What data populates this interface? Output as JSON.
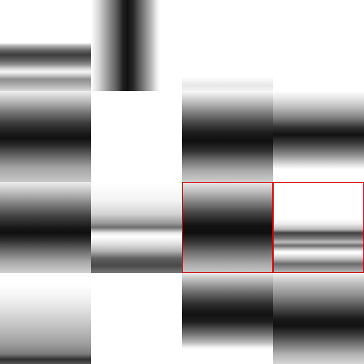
{
  "grid": {
    "rows": 4,
    "columns": 4,
    "tiles": [
      {
        "row": 1,
        "col": 1,
        "pattern": "horizontal-bands-lower",
        "selected": false
      },
      {
        "row": 1,
        "col": 2,
        "pattern": "vertical-dark-band",
        "selected": false
      },
      {
        "row": 1,
        "col": 3,
        "pattern": "faint-lower-band",
        "selected": false
      },
      {
        "row": 1,
        "col": 4,
        "pattern": "blank",
        "selected": false
      },
      {
        "row": 2,
        "col": 1,
        "pattern": "horizontal-dark-band",
        "selected": false
      },
      {
        "row": 2,
        "col": 2,
        "pattern": "blank",
        "selected": false
      },
      {
        "row": 2,
        "col": 3,
        "pattern": "horizontal-dark-band",
        "selected": false
      },
      {
        "row": 2,
        "col": 4,
        "pattern": "horizontal-dark-band-short",
        "selected": false
      },
      {
        "row": 3,
        "col": 1,
        "pattern": "horizontal-dark-band",
        "selected": false
      },
      {
        "row": 3,
        "col": 2,
        "pattern": "split-light-dark-bands",
        "selected": false
      },
      {
        "row": 3,
        "col": 3,
        "pattern": "horizontal-dark-band",
        "selected": true
      },
      {
        "row": 3,
        "col": 4,
        "pattern": "thin-dark-lines",
        "selected": true
      },
      {
        "row": 4,
        "col": 1,
        "pattern": "bottom-fade",
        "selected": false
      },
      {
        "row": 4,
        "col": 2,
        "pattern": "blank",
        "selected": false
      },
      {
        "row": 4,
        "col": 3,
        "pattern": "upper-dark-band",
        "selected": false
      },
      {
        "row": 4,
        "col": 4,
        "pattern": "horizontal-dark-band",
        "selected": false
      }
    ]
  },
  "selection_color": "#d40000"
}
